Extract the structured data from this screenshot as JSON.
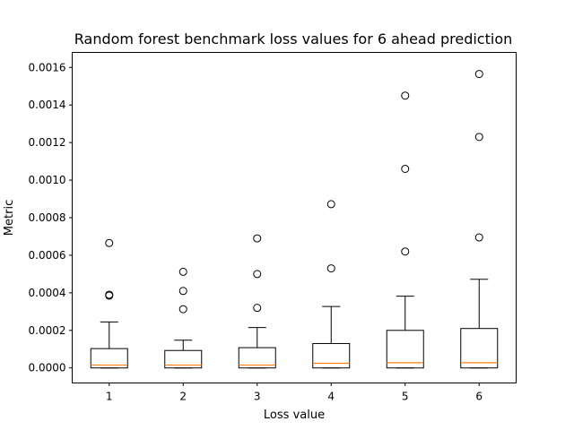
{
  "chart_data": {
    "type": "box",
    "title": "Random forest benchmark loss values for 6 ahead prediction",
    "xlabel": "Loss value",
    "ylabel": "Metric",
    "ylim": [
      -8e-05,
      0.00168
    ],
    "yticks": [
      "0.0000",
      "0.0002",
      "0.0004",
      "0.0006",
      "0.0008",
      "0.0010",
      "0.0012",
      "0.0014",
      "0.0016"
    ],
    "ytick_values": [
      0,
      0.0002,
      0.0004,
      0.0006,
      0.0008,
      0.001,
      0.0012,
      0.0014,
      0.0016
    ],
    "grid": false,
    "colors": {
      "box": "#000000",
      "median": "#ff7f0e",
      "flier": "#000000"
    },
    "boxes": [
      {
        "label": "1",
        "whisker_low": 0.0,
        "q1": 0.0,
        "median": 1.5e-05,
        "q3": 0.000103,
        "whisker_high": 0.000245,
        "outliers": [
          0.000385,
          0.00039,
          0.000665
        ]
      },
      {
        "label": "2",
        "whisker_low": 0.0,
        "q1": 0.0,
        "median": 1.5e-05,
        "q3": 9.3e-05,
        "whisker_high": 0.000148,
        "outliers": [
          0.000313,
          0.00041,
          0.000512
        ]
      },
      {
        "label": "3",
        "whisker_low": 0.0,
        "q1": 0.0,
        "median": 1.5e-05,
        "q3": 0.000108,
        "whisker_high": 0.000215,
        "outliers": [
          0.00032,
          0.0005,
          0.00069
        ]
      },
      {
        "label": "4",
        "whisker_low": 0.0,
        "q1": 0.0,
        "median": 2.5e-05,
        "q3": 0.00013,
        "whisker_high": 0.000327,
        "outliers": [
          0.00053,
          0.000872
        ]
      },
      {
        "label": "5",
        "whisker_low": 0.0,
        "q1": 0.0,
        "median": 2.8e-05,
        "q3": 0.0002,
        "whisker_high": 0.000382,
        "outliers": [
          0.00062,
          0.00106,
          0.00145
        ]
      },
      {
        "label": "6",
        "whisker_low": 0.0,
        "q1": 0.0,
        "median": 2.8e-05,
        "q3": 0.00021,
        "whisker_high": 0.000472,
        "outliers": [
          0.000695,
          0.00123,
          0.001565
        ]
      }
    ]
  }
}
